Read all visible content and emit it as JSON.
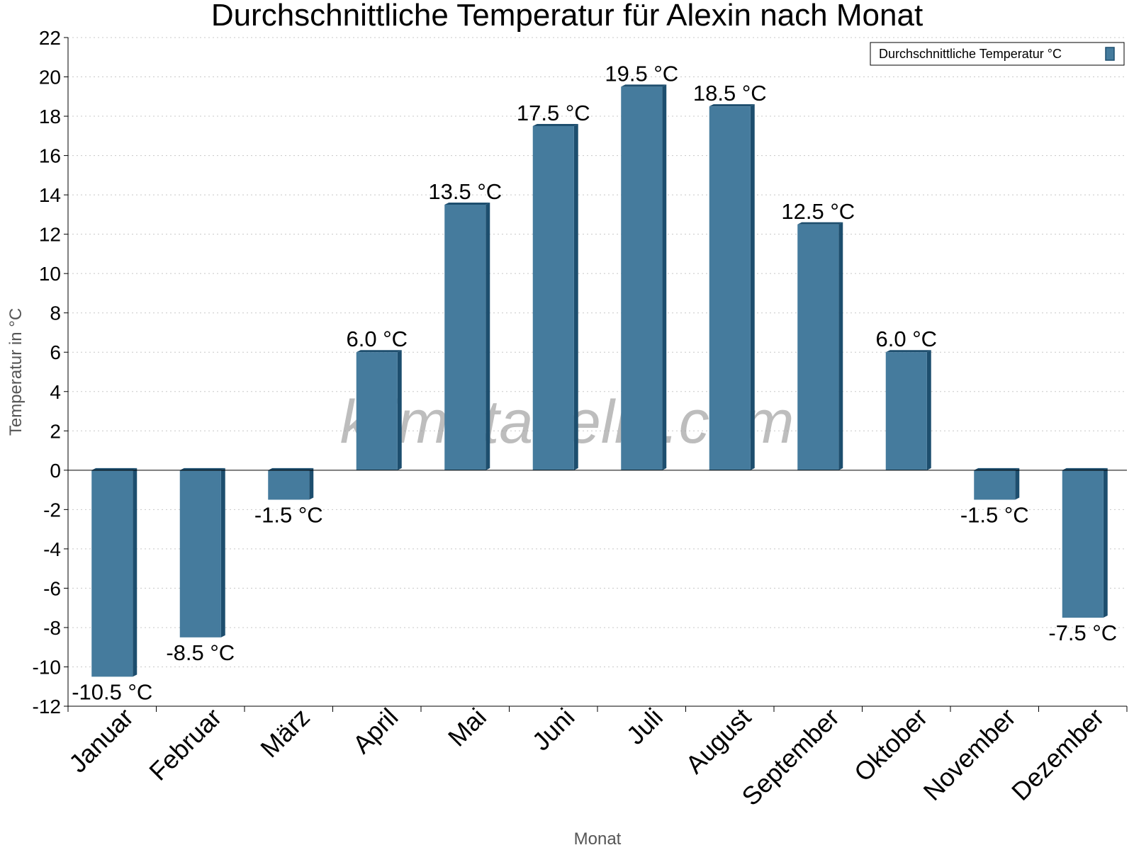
{
  "chart_data": {
    "type": "bar",
    "title": "Durchschnittliche Temperatur für Alexin nach Monat",
    "xlabel": "Monat",
    "ylabel": "Temperatur in °C",
    "categories": [
      "Januar",
      "Februar",
      "März",
      "April",
      "Mai",
      "Juni",
      "Juli",
      "August",
      "September",
      "Oktober",
      "November",
      "Dezember"
    ],
    "series": [
      {
        "name": "Durchschnittliche Temperatur °C",
        "values": [
          -10.5,
          -8.5,
          -1.5,
          6.0,
          13.5,
          17.5,
          19.5,
          18.5,
          12.5,
          6.0,
          -1.5,
          -7.5
        ],
        "labels": [
          "-10.5 °C",
          "-8.5 °C",
          "-1.5 °C",
          "6.0 °C",
          "13.5 °C",
          "17.5 °C",
          "19.5 °C",
          "18.5 °C",
          "12.5 °C",
          "6.0 °C",
          "-1.5 °C",
          "-7.5 °C"
        ],
        "color": "#457b9d",
        "side_color": "#1d4e6e"
      }
    ],
    "ylim": [
      -12,
      22
    ],
    "yticks": [
      -12,
      -10,
      -8,
      -6,
      -4,
      -2,
      0,
      2,
      4,
      6,
      8,
      10,
      12,
      14,
      16,
      18,
      20,
      22
    ],
    "grid": true,
    "legend_position": "top-right",
    "watermark": "klimatabelle.com"
  }
}
